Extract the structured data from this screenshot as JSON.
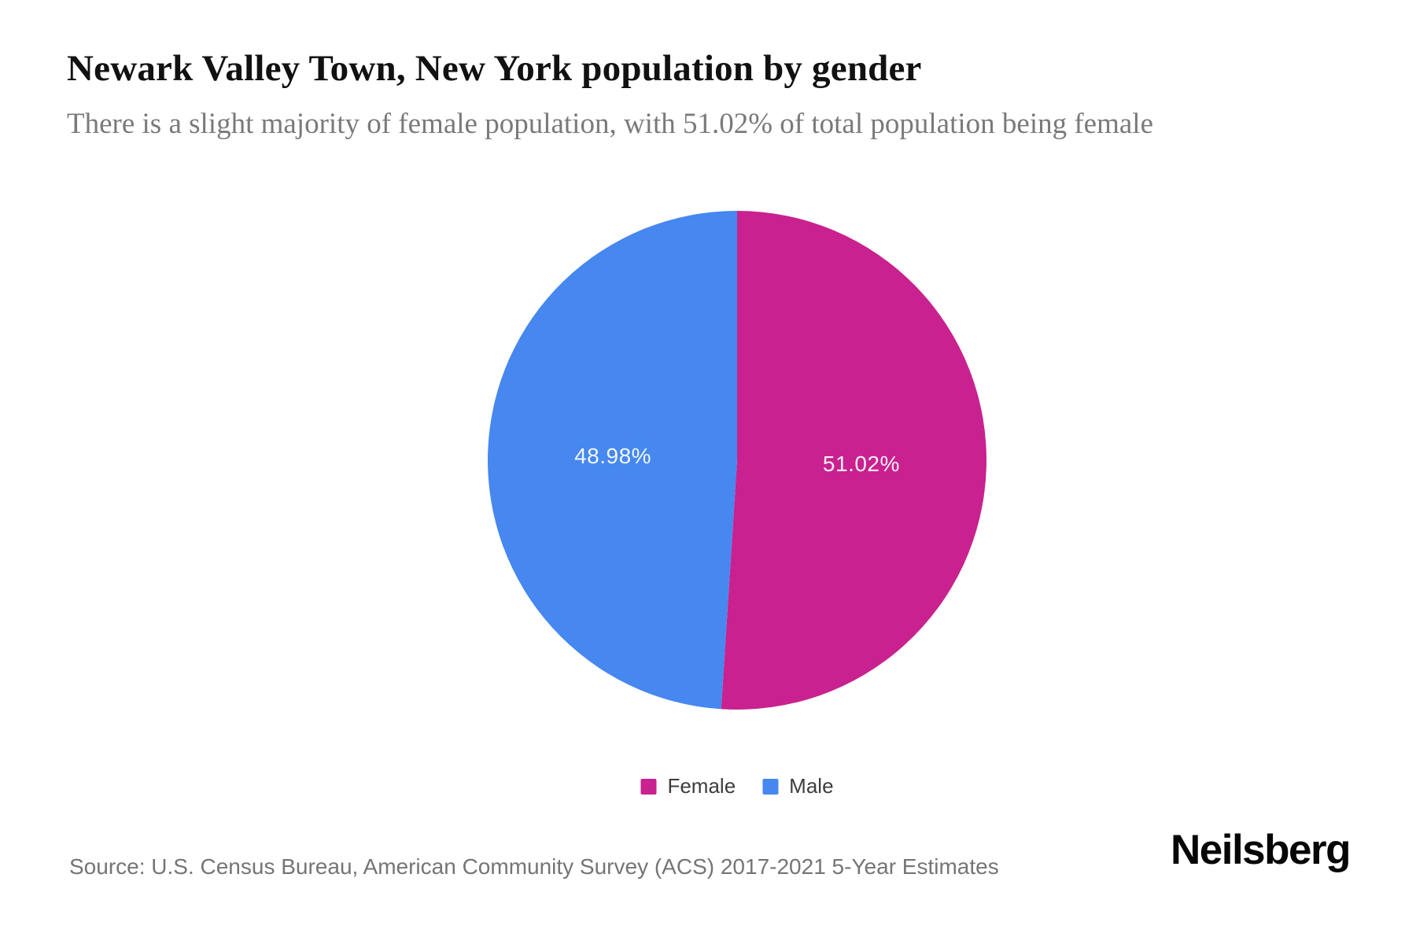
{
  "page": {
    "title": "Newark Valley Town, New York population by gender",
    "subtitle": "There is a slight majority of female population, with 51.02% of total population being female",
    "source": "Source: U.S. Census Bureau, American Community Survey (ACS) 2017-2021 5-Year Estimates",
    "brand": "Neilsberg"
  },
  "chart_data": {
    "type": "pie",
    "title": "Newark Valley Town, New York population by gender",
    "start_angle_deg": 0,
    "direction": "clockwise",
    "legend_position": "bottom",
    "value_label_color": "#FFFFFF",
    "slices": [
      {
        "label": "Female",
        "value": 51.02,
        "display": "51.02%",
        "color": "#C9218F"
      },
      {
        "label": "Male",
        "value": 48.98,
        "display": "48.98%",
        "color": "#4687F0"
      }
    ]
  }
}
